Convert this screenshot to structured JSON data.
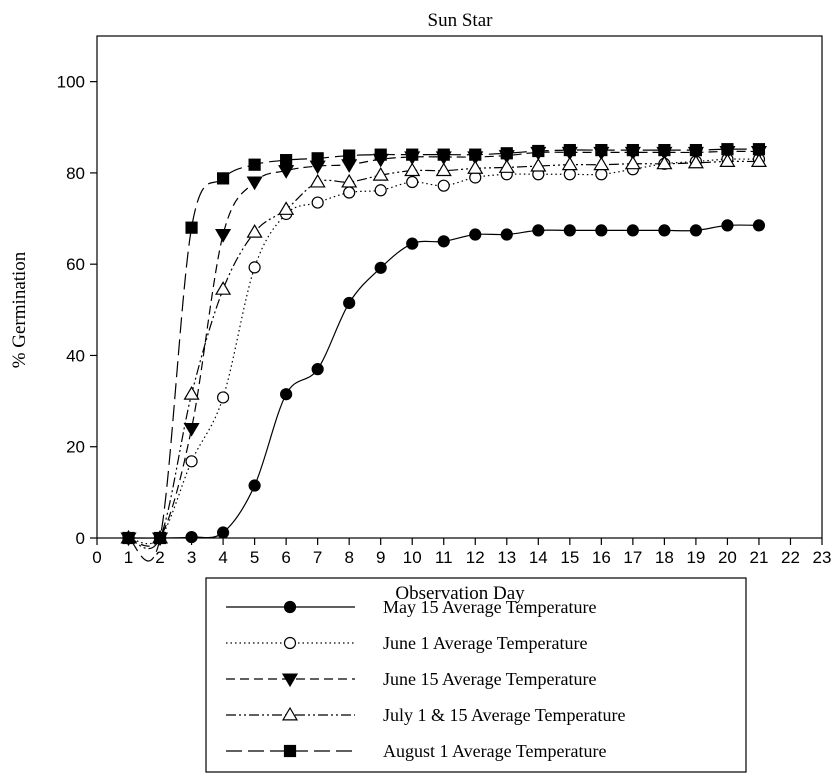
{
  "chart_data": {
    "type": "line",
    "title": "Sun Star",
    "xlabel": "Observation Day",
    "ylabel": "% Germination",
    "xlim": [
      0,
      23
    ],
    "ylim": [
      0,
      110
    ],
    "x_ticks": [
      0,
      1,
      2,
      3,
      4,
      5,
      6,
      7,
      8,
      9,
      10,
      11,
      12,
      13,
      14,
      15,
      16,
      17,
      18,
      19,
      20,
      21,
      22,
      23
    ],
    "y_ticks": [
      0,
      20,
      40,
      60,
      80,
      100
    ],
    "grid": false,
    "legend_position": "bottom",
    "x": [
      1,
      2,
      3,
      4,
      5,
      6,
      7,
      8,
      9,
      10,
      11,
      12,
      13,
      14,
      15,
      16,
      17,
      18,
      19,
      20,
      21
    ],
    "series": [
      {
        "name": "May 15 Average Temperature",
        "marker": "filled-circle",
        "line": "solid",
        "values": [
          0,
          0,
          0.2,
          1.2,
          11.5,
          31.5,
          37,
          51.5,
          59.2,
          64.5,
          65,
          66.5,
          66.5,
          67.4,
          67.4,
          67.4,
          67.4,
          67.4,
          67.4,
          68.5,
          68.5
        ]
      },
      {
        "name": "June 1 Average Temperature",
        "marker": "open-circle",
        "line": "dotted",
        "values": [
          0,
          0,
          16.8,
          30.8,
          59.3,
          71,
          73.5,
          75.7,
          76.2,
          78,
          77.2,
          79,
          79.7,
          79.7,
          79.7,
          79.7,
          80.8,
          82,
          82.5,
          83,
          83
        ]
      },
      {
        "name": "June 15 Average Temperature",
        "marker": "filled-triangle-down",
        "line": "dashed",
        "values": [
          0,
          0,
          24,
          66.5,
          78,
          80.5,
          81.5,
          81.8,
          83,
          83.5,
          83.5,
          83.5,
          83.8,
          84.5,
          84.5,
          84.5,
          84.5,
          84.5,
          84.5,
          84.7,
          84.7
        ]
      },
      {
        "name": "July 1 & 15 Average Temperature",
        "marker": "open-triangle-up",
        "line": "dash-dot-dot",
        "values": [
          0,
          0,
          31.5,
          54.5,
          67,
          72,
          78,
          78,
          79.5,
          80.5,
          80.5,
          81,
          81.2,
          81.5,
          81.8,
          81.8,
          82,
          82,
          82.2,
          82.5,
          82.5
        ]
      },
      {
        "name": "August 1 Average Temperature",
        "marker": "filled-square",
        "line": "long-dash",
        "values": [
          0,
          0,
          68,
          78.8,
          81.8,
          82.8,
          83.2,
          83.8,
          84,
          84,
          84,
          84,
          84.3,
          84.8,
          85,
          85,
          85,
          85,
          85,
          85.2,
          85.2
        ]
      }
    ]
  }
}
